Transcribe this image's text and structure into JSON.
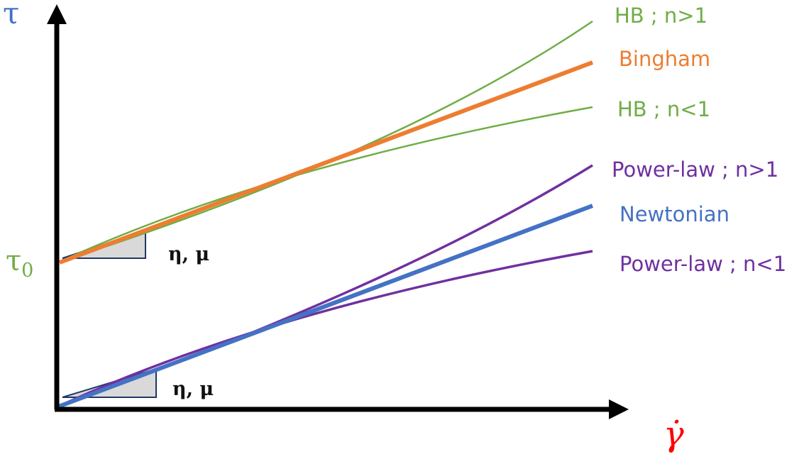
{
  "axes": {
    "y_symbol": "τ",
    "x_symbol": "γ̇",
    "yield_symbol": "τ",
    "yield_subscript": "0"
  },
  "slope_labels": {
    "upper": "η, μ",
    "lower": "η, μ"
  },
  "curves": [
    {
      "key": "hb_n_gt_1",
      "label": "HB ; n>1",
      "color": "#70ad47",
      "origin": "tau0",
      "behavior": "shear-thickening"
    },
    {
      "key": "bingham",
      "label": "Bingham",
      "color": "#ed7d31",
      "origin": "tau0",
      "behavior": "linear"
    },
    {
      "key": "hb_n_lt_1",
      "label": "HB ; n<1",
      "color": "#70ad47",
      "origin": "tau0",
      "behavior": "shear-thinning"
    },
    {
      "key": "powerlaw_n_gt_1",
      "label": "Power-law ; n>1",
      "color": "#7030a0",
      "origin": "zero",
      "behavior": "shear-thickening"
    },
    {
      "key": "newtonian",
      "label": "Newtonian",
      "color": "#4472c4",
      "origin": "zero",
      "behavior": "linear"
    },
    {
      "key": "powerlaw_n_lt_1",
      "label": "Power-law ; n<1",
      "color": "#7030a0",
      "origin": "zero",
      "behavior": "shear-thinning"
    }
  ],
  "colors": {
    "axis": "#000000",
    "y_symbol": "#4472c4",
    "x_symbol": "#ff0000",
    "yield_symbol": "#70ad47",
    "triangle_fill": "#d9d9d9",
    "triangle_stroke": "#1f3864"
  }
}
